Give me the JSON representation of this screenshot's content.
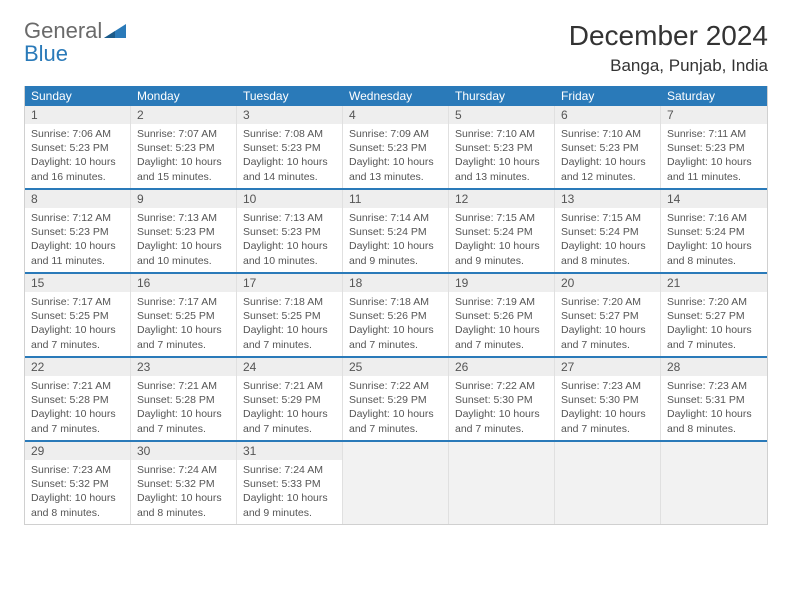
{
  "logo": {
    "text1": "General",
    "text2": "Blue"
  },
  "title": "December 2024",
  "location": "Banga, Punjab, India",
  "colors": {
    "header_bg": "#2a7ab9",
    "header_text": "#ffffff",
    "daynum_bg": "#eeeeee",
    "empty_bg": "#f2f2f2",
    "week_divider": "#2a7ab9",
    "cell_border": "#e0e0e0",
    "text": "#555555"
  },
  "dayNames": [
    "Sunday",
    "Monday",
    "Tuesday",
    "Wednesday",
    "Thursday",
    "Friday",
    "Saturday"
  ],
  "weeks": [
    [
      {
        "n": "1",
        "sr": "7:06 AM",
        "ss": "5:23 PM",
        "dl": "10 hours and 16 minutes."
      },
      {
        "n": "2",
        "sr": "7:07 AM",
        "ss": "5:23 PM",
        "dl": "10 hours and 15 minutes."
      },
      {
        "n": "3",
        "sr": "7:08 AM",
        "ss": "5:23 PM",
        "dl": "10 hours and 14 minutes."
      },
      {
        "n": "4",
        "sr": "7:09 AM",
        "ss": "5:23 PM",
        "dl": "10 hours and 13 minutes."
      },
      {
        "n": "5",
        "sr": "7:10 AM",
        "ss": "5:23 PM",
        "dl": "10 hours and 13 minutes."
      },
      {
        "n": "6",
        "sr": "7:10 AM",
        "ss": "5:23 PM",
        "dl": "10 hours and 12 minutes."
      },
      {
        "n": "7",
        "sr": "7:11 AM",
        "ss": "5:23 PM",
        "dl": "10 hours and 11 minutes."
      }
    ],
    [
      {
        "n": "8",
        "sr": "7:12 AM",
        "ss": "5:23 PM",
        "dl": "10 hours and 11 minutes."
      },
      {
        "n": "9",
        "sr": "7:13 AM",
        "ss": "5:23 PM",
        "dl": "10 hours and 10 minutes."
      },
      {
        "n": "10",
        "sr": "7:13 AM",
        "ss": "5:23 PM",
        "dl": "10 hours and 10 minutes."
      },
      {
        "n": "11",
        "sr": "7:14 AM",
        "ss": "5:24 PM",
        "dl": "10 hours and 9 minutes."
      },
      {
        "n": "12",
        "sr": "7:15 AM",
        "ss": "5:24 PM",
        "dl": "10 hours and 9 minutes."
      },
      {
        "n": "13",
        "sr": "7:15 AM",
        "ss": "5:24 PM",
        "dl": "10 hours and 8 minutes."
      },
      {
        "n": "14",
        "sr": "7:16 AM",
        "ss": "5:24 PM",
        "dl": "10 hours and 8 minutes."
      }
    ],
    [
      {
        "n": "15",
        "sr": "7:17 AM",
        "ss": "5:25 PM",
        "dl": "10 hours and 7 minutes."
      },
      {
        "n": "16",
        "sr": "7:17 AM",
        "ss": "5:25 PM",
        "dl": "10 hours and 7 minutes."
      },
      {
        "n": "17",
        "sr": "7:18 AM",
        "ss": "5:25 PM",
        "dl": "10 hours and 7 minutes."
      },
      {
        "n": "18",
        "sr": "7:18 AM",
        "ss": "5:26 PM",
        "dl": "10 hours and 7 minutes."
      },
      {
        "n": "19",
        "sr": "7:19 AM",
        "ss": "5:26 PM",
        "dl": "10 hours and 7 minutes."
      },
      {
        "n": "20",
        "sr": "7:20 AM",
        "ss": "5:27 PM",
        "dl": "10 hours and 7 minutes."
      },
      {
        "n": "21",
        "sr": "7:20 AM",
        "ss": "5:27 PM",
        "dl": "10 hours and 7 minutes."
      }
    ],
    [
      {
        "n": "22",
        "sr": "7:21 AM",
        "ss": "5:28 PM",
        "dl": "10 hours and 7 minutes."
      },
      {
        "n": "23",
        "sr": "7:21 AM",
        "ss": "5:28 PM",
        "dl": "10 hours and 7 minutes."
      },
      {
        "n": "24",
        "sr": "7:21 AM",
        "ss": "5:29 PM",
        "dl": "10 hours and 7 minutes."
      },
      {
        "n": "25",
        "sr": "7:22 AM",
        "ss": "5:29 PM",
        "dl": "10 hours and 7 minutes."
      },
      {
        "n": "26",
        "sr": "7:22 AM",
        "ss": "5:30 PM",
        "dl": "10 hours and 7 minutes."
      },
      {
        "n": "27",
        "sr": "7:23 AM",
        "ss": "5:30 PM",
        "dl": "10 hours and 7 minutes."
      },
      {
        "n": "28",
        "sr": "7:23 AM",
        "ss": "5:31 PM",
        "dl": "10 hours and 8 minutes."
      }
    ],
    [
      {
        "n": "29",
        "sr": "7:23 AM",
        "ss": "5:32 PM",
        "dl": "10 hours and 8 minutes."
      },
      {
        "n": "30",
        "sr": "7:24 AM",
        "ss": "5:32 PM",
        "dl": "10 hours and 8 minutes."
      },
      {
        "n": "31",
        "sr": "7:24 AM",
        "ss": "5:33 PM",
        "dl": "10 hours and 9 minutes."
      },
      null,
      null,
      null,
      null
    ]
  ],
  "labels": {
    "sunrise": "Sunrise:",
    "sunset": "Sunset:",
    "daylight": "Daylight:"
  }
}
